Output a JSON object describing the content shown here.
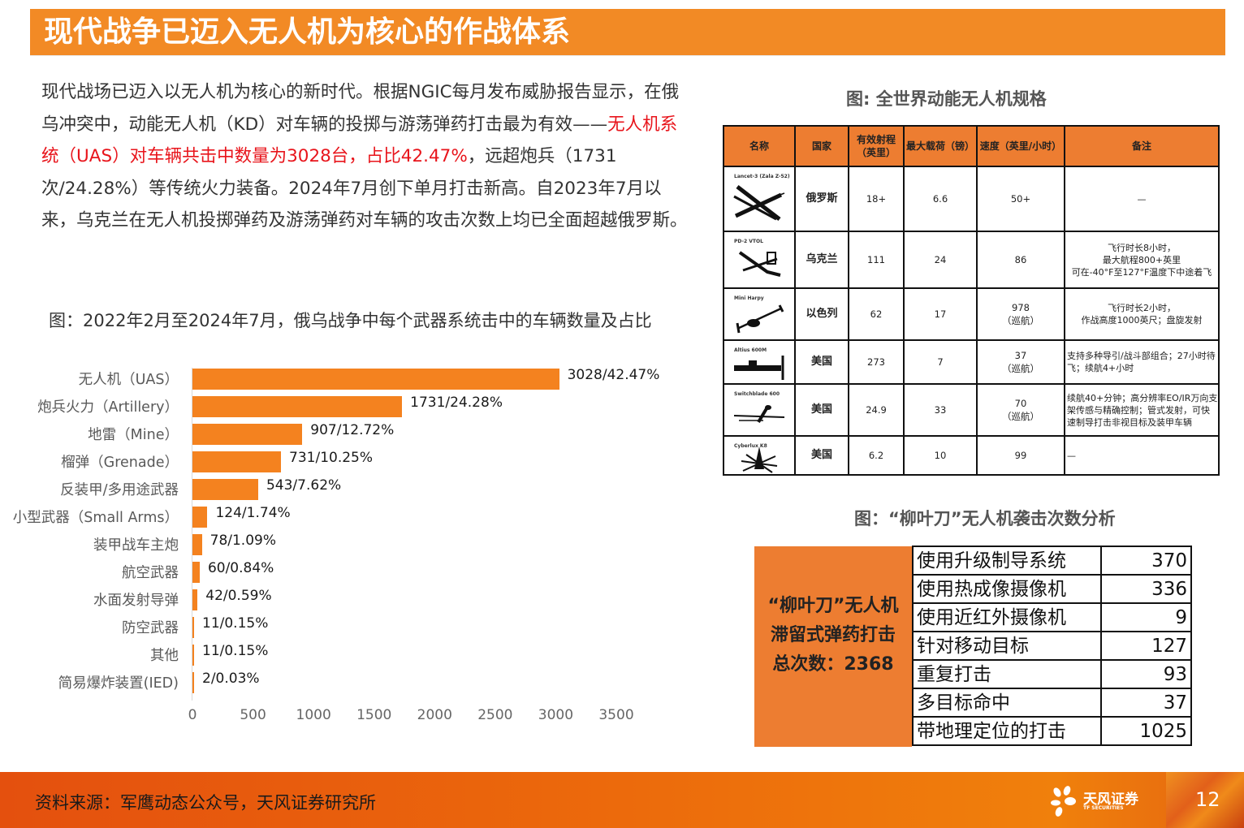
{
  "header": {
    "title": "现代战争已迈入无人机为核心的作战体系"
  },
  "intro": {
    "part1": "现代战场已迈入以无人机为核心的新时代。根据NGIC每月发布威胁报告显示，在俄乌冲突中，动能无人机（KD）对车辆的投掷与游荡弹药打击最为有效——",
    "highlight": "无人机系统（UAS）对车辆共击中数量为3028台，占比42.47%",
    "part2": "，远超炮兵（1731次/24.28%）等传统火力装备。2024年7月创下单月打击新高。自2023年7月以来，乌克兰在无人机投掷弹药及游荡弹药对车辆的攻击次数上均已全面超越俄罗斯。"
  },
  "chart_title": "图：2022年2月至2024年7月，俄乌战争中每个武器系统击中的车辆数量及占比",
  "chart_data": {
    "type": "bar",
    "orientation": "horizontal",
    "title": "图：2022年2月至2024年7月，俄乌战争中每个武器系统击中的车辆数量及占比",
    "xlabel": "",
    "ylabel": "",
    "xlim": [
      0,
      3500
    ],
    "xticks": [
      "0",
      "500",
      "1000",
      "1500",
      "2000",
      "2500",
      "3000",
      "3500"
    ],
    "grid": false,
    "legend": null,
    "bar_color": "#f4821f",
    "categories": [
      "无人机（UAS）",
      "炮兵火力（Artillery）",
      "地雷（Mine）",
      "榴弹（Grenade）",
      "反装甲/多用途武器",
      "小型武器（Small Arms）",
      "装甲战车主炮",
      "航空武器",
      "水面发射导弹",
      "防空武器",
      "其他",
      "简易爆炸装置(IED)"
    ],
    "values": [
      3028,
      1731,
      907,
      731,
      543,
      124,
      78,
      60,
      42,
      11,
      11,
      2
    ],
    "percentages": [
      "42.47%",
      "24.28%",
      "12.72%",
      "10.25%",
      "7.62%",
      "1.74%",
      "1.09%",
      "0.84%",
      "0.59%",
      "0.15%",
      "0.15%",
      "0.03%"
    ],
    "data_labels": [
      "3028/42.47%",
      "1731/24.28%",
      "907/12.72%",
      "731/10.25%",
      "543/7.62%",
      "124/1.74%",
      "78/1.09%",
      "60/0.84%",
      "42/0.59%",
      "11/0.15%",
      "11/0.15%",
      "2/0.03%"
    ]
  },
  "spec_table": {
    "title": "图: 全世界动能无人机规格",
    "headers": [
      "名称",
      "国家",
      "有效射程（英里）",
      "最大载荷（镑）",
      "速度（英里/小时）",
      "备注"
    ],
    "header_color": "#ed7d31",
    "rows": [
      {
        "name": "Lancet-3 (Zala Z-52)",
        "icon": "lancet-drone-silhouette",
        "country": "俄罗斯",
        "range": "18+",
        "payload": "6.6",
        "speed": "50+",
        "speed_note": "",
        "note": "—"
      },
      {
        "name": "PD-2 VTOL",
        "icon": "pd2-vtol-drone-silhouette",
        "country": "乌克兰",
        "range": "111",
        "payload": "24",
        "speed": "86",
        "speed_note": "",
        "note": "飞行时长8小时，\n最大航程800+英里\n可在-40°F至127°F温度下中途着飞"
      },
      {
        "name": "Mini Harpy",
        "icon": "mini-harpy-drone-silhouette",
        "country": "以色列",
        "range": "62",
        "payload": "17",
        "speed": "978",
        "speed_note": "（巡航）",
        "note": "飞行时长2小时，\n作战高度1000英尺；盘旋发射"
      },
      {
        "name": "Altius 600M",
        "icon": "altius-drone-silhouette",
        "country": "美国",
        "range": "273",
        "payload": "7",
        "speed": "37",
        "speed_note": "（巡航）",
        "note": "支持多种导引/战斗部组合；27小时待飞；续航4+小时"
      },
      {
        "name": "Switchblade 600",
        "icon": "switchblade-drone-silhouette",
        "country": "美国",
        "range": "24.9",
        "payload": "33",
        "speed": "70",
        "speed_note": "（巡航）",
        "note": "续航40+分钟；高分辨率EO/IR万向支架传感与精确控制；管式发射，可快速制导打击非视目标及装甲车辆"
      },
      {
        "name": "Cyberlux K8",
        "icon": "cyberlux-drone-silhouette",
        "country": "美国",
        "range": "6.2",
        "payload": "10",
        "speed": "99",
        "speed_note": "",
        "note": "—"
      }
    ]
  },
  "lancet_table": {
    "title": "图：“柳叶刀”无人机袭击次数分析",
    "summary_line1": "“柳叶刀”无人机",
    "summary_line2": "滞留式弹药打击",
    "summary_line3": "总次数：2368",
    "summary_color": "#ed7d31",
    "rows": [
      {
        "label": "使用升级制导系统",
        "value": "370"
      },
      {
        "label": "使用热成像摄像机",
        "value": "336"
      },
      {
        "label": "使用近红外摄像机",
        "value": "9"
      },
      {
        "label": "针对移动目标",
        "value": "127"
      },
      {
        "label": "重复打击",
        "value": "93"
      },
      {
        "label": "多目标命中",
        "value": "37"
      },
      {
        "label": "带地理定位的打击",
        "value": "1025"
      }
    ]
  },
  "footer": {
    "source": "资料来源：军鹰动态公众号，天风证券研究所",
    "logo_cn": "天风证券",
    "logo_en": "TF SECURITIES",
    "page_number": "12"
  },
  "colors": {
    "accent": "#f28a25",
    "highlight_red": "#e8141b",
    "bar": "#f4821f"
  }
}
